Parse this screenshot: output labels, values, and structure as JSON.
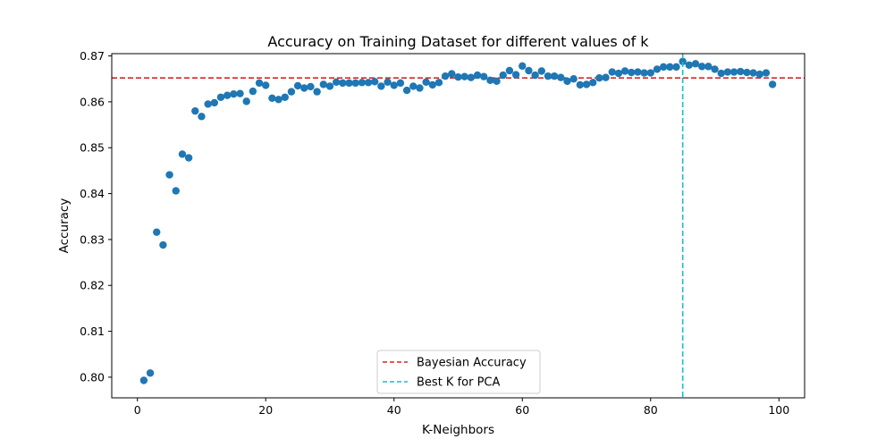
{
  "chart_data": {
    "type": "scatter",
    "title": "Accuracy on Training Dataset for different values of k",
    "xlabel": "K-Neighbors",
    "ylabel": "Accuracy",
    "xlim": [
      -4,
      104
    ],
    "ylim": [
      0.7955,
      0.8705
    ],
    "xticks": [
      0,
      20,
      40,
      60,
      80,
      100
    ],
    "yticks": [
      0.8,
      0.81,
      0.82,
      0.83,
      0.84,
      0.85,
      0.86,
      0.87
    ],
    "grid": false,
    "legend_position": "lower-center",
    "series": [
      {
        "color": "#1f77b4",
        "x": [
          1,
          2,
          3,
          4,
          5,
          6,
          7,
          8,
          9,
          10,
          11,
          12,
          13,
          14,
          15,
          16,
          17,
          18,
          19,
          20,
          21,
          22,
          23,
          24,
          25,
          26,
          27,
          28,
          29,
          30,
          31,
          32,
          33,
          34,
          35,
          36,
          37,
          38,
          39,
          40,
          41,
          42,
          43,
          44,
          45,
          46,
          47,
          48,
          49,
          50,
          51,
          52,
          53,
          54,
          55,
          56,
          57,
          58,
          59,
          60,
          61,
          62,
          63,
          64,
          65,
          66,
          67,
          68,
          69,
          70,
          71,
          72,
          73,
          74,
          75,
          76,
          77,
          78,
          79,
          80,
          81,
          82,
          83,
          84,
          85,
          86,
          87,
          88,
          89,
          90,
          91,
          92,
          93,
          94,
          95,
          96,
          97,
          98,
          99
        ],
        "y": [
          0.7993,
          0.8009,
          0.8316,
          0.8288,
          0.8441,
          0.8406,
          0.8486,
          0.8478,
          0.858,
          0.8568,
          0.8595,
          0.8598,
          0.861,
          0.8614,
          0.8617,
          0.8618,
          0.8601,
          0.8623,
          0.8641,
          0.8636,
          0.8608,
          0.8605,
          0.861,
          0.8622,
          0.8635,
          0.863,
          0.8633,
          0.8622,
          0.8638,
          0.8634,
          0.8643,
          0.8641,
          0.8641,
          0.8641,
          0.8642,
          0.8642,
          0.8644,
          0.8634,
          0.8643,
          0.8636,
          0.8641,
          0.8625,
          0.8634,
          0.863,
          0.8643,
          0.8637,
          0.8642,
          0.8656,
          0.8661,
          0.8654,
          0.8655,
          0.8653,
          0.8658,
          0.8655,
          0.8647,
          0.8645,
          0.8658,
          0.8668,
          0.8659,
          0.8678,
          0.8668,
          0.8658,
          0.8667,
          0.8656,
          0.8656,
          0.8653,
          0.8645,
          0.865,
          0.8637,
          0.8638,
          0.8642,
          0.8652,
          0.8653,
          0.8665,
          0.8662,
          0.8667,
          0.8664,
          0.8665,
          0.8663,
          0.8663,
          0.8671,
          0.8676,
          0.8676,
          0.8676,
          0.8688,
          0.868,
          0.8683,
          0.8677,
          0.8677,
          0.8671,
          0.8662,
          0.8665,
          0.8665,
          0.8666,
          0.8664,
          0.8663,
          0.866,
          0.8663,
          0.8638
        ]
      }
    ],
    "reference_lines": [
      {
        "orientation": "horizontal",
        "value": 0.8652,
        "color": "#d62728",
        "style": "dashed",
        "label": "Bayesian Accuracy"
      },
      {
        "orientation": "vertical",
        "value": 85,
        "color": "#17becf",
        "style": "dashed",
        "label": "Best K for PCA"
      }
    ]
  }
}
